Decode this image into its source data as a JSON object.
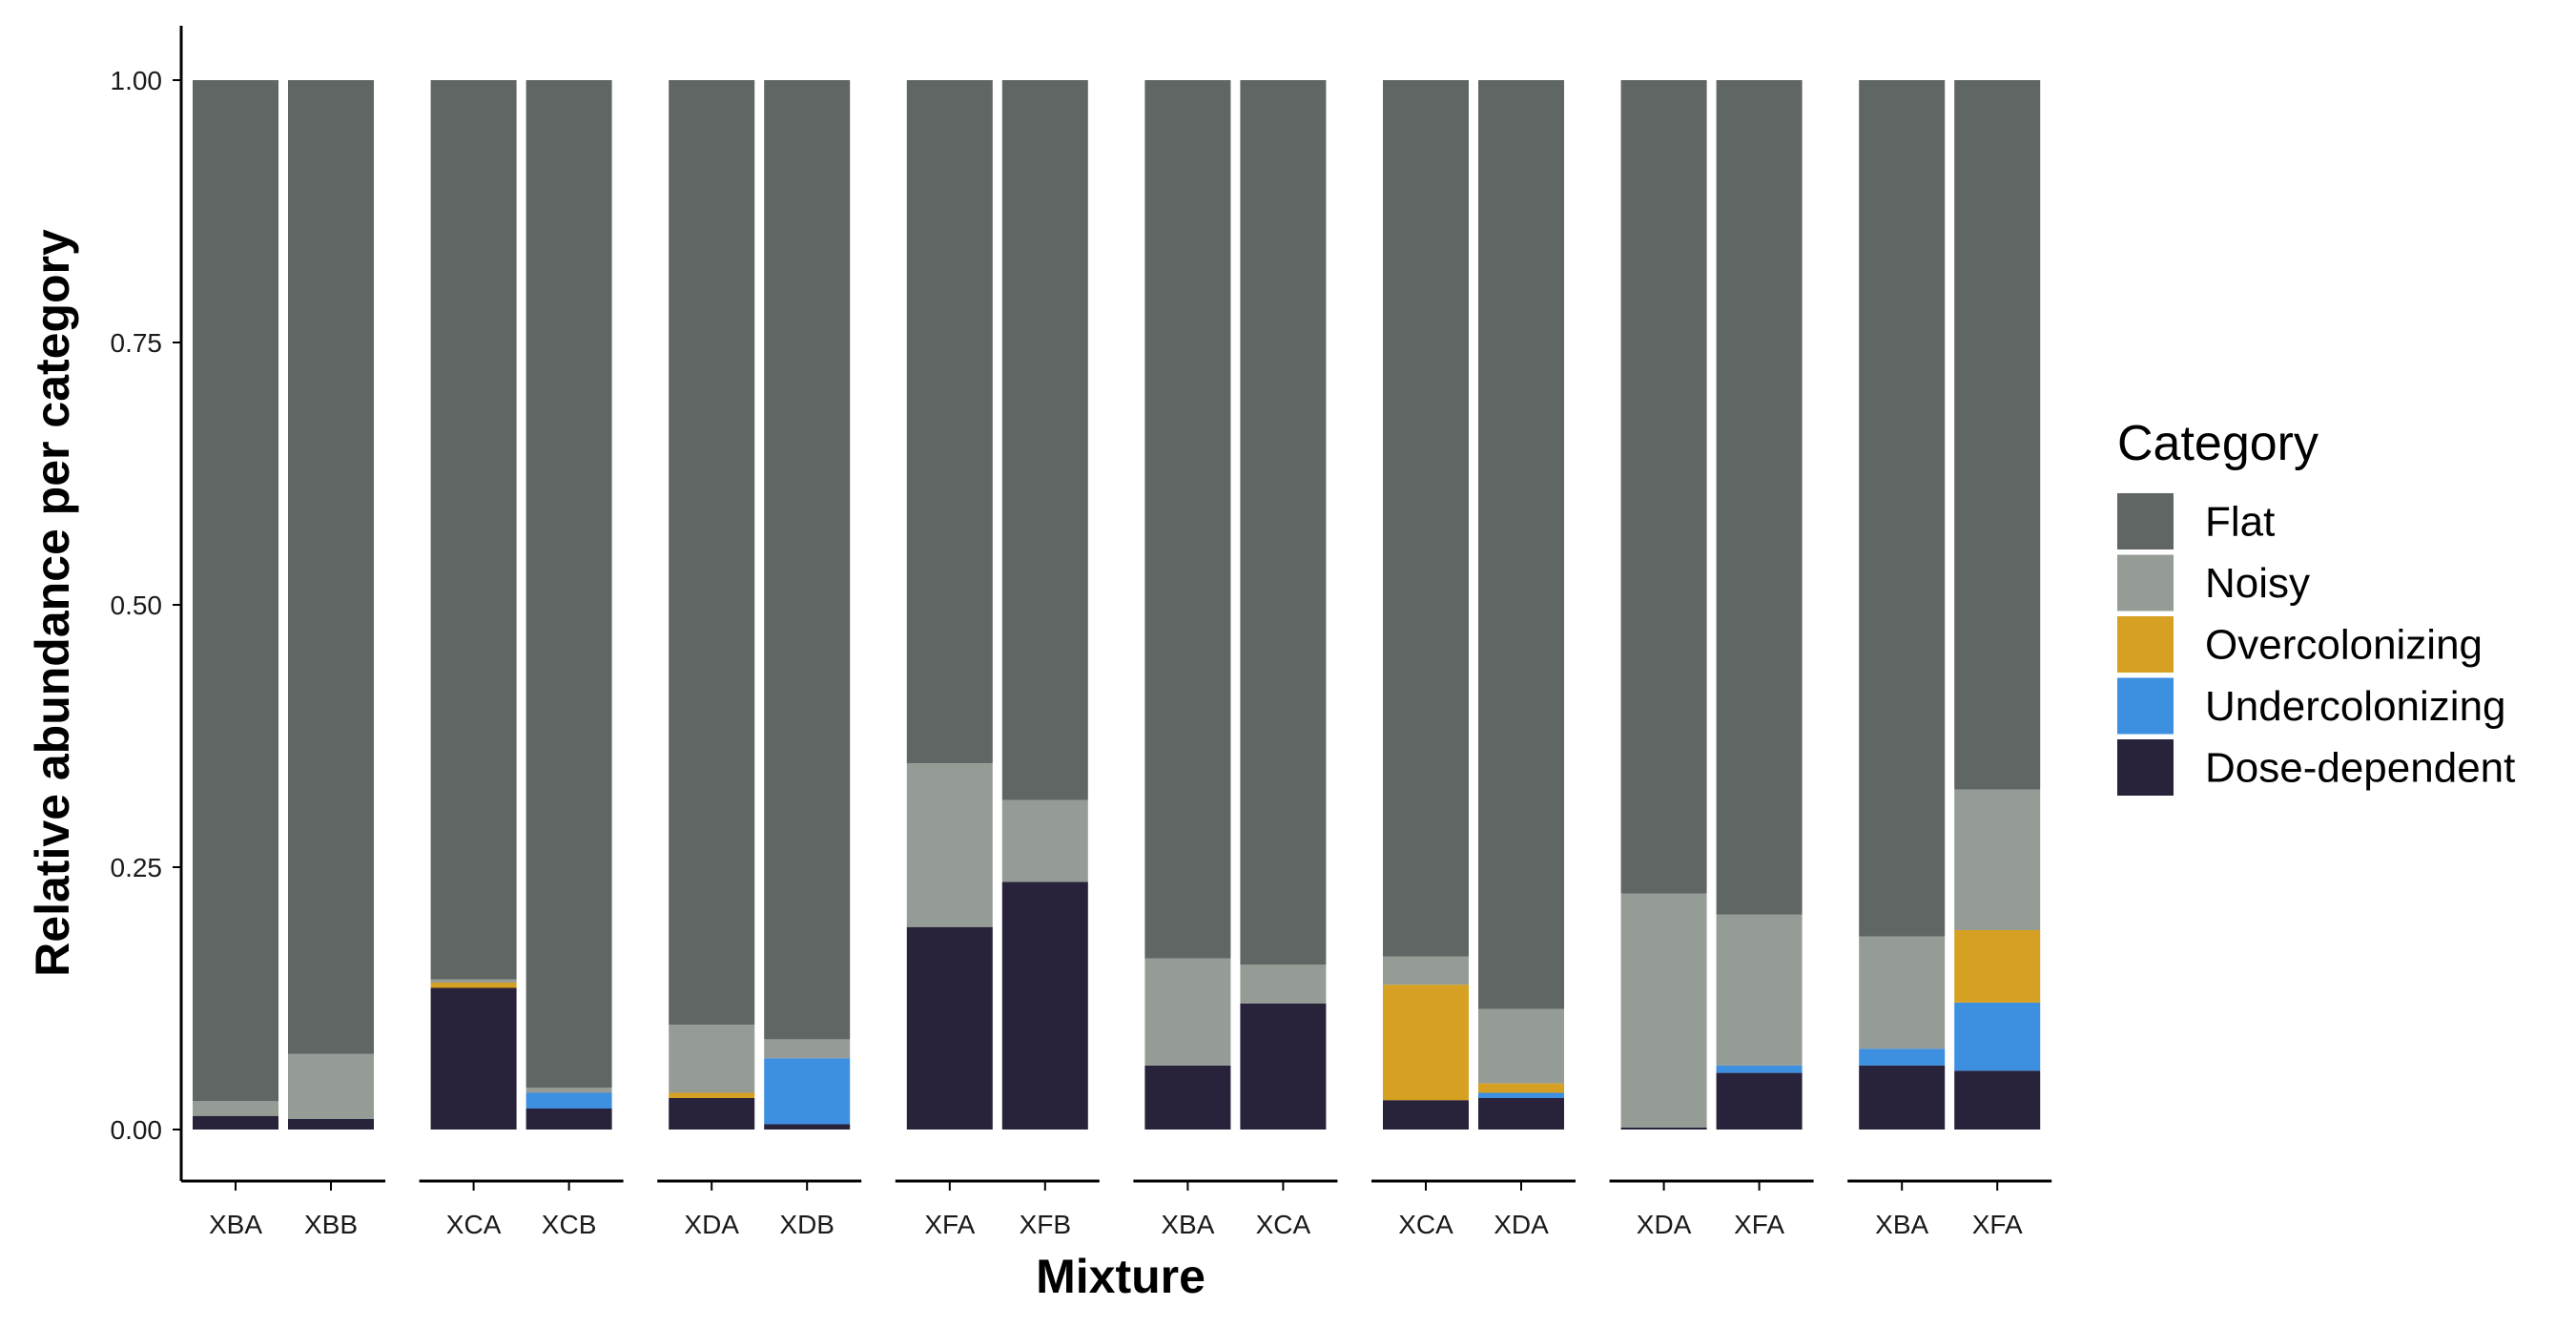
{
  "chart_data": {
    "type": "bar",
    "stacked": true,
    "xlabel": "Mixture",
    "ylabel": "Relative abundance per category",
    "ylim": [
      0,
      1
    ],
    "yticks": [
      "0.00",
      "0.25",
      "0.50",
      "0.75",
      "1.00"
    ],
    "grid": false,
    "legend": {
      "title": "Category",
      "placement": "right",
      "items": [
        {
          "name": "Flat",
          "color": "#606664"
        },
        {
          "name": "Noisy",
          "color": "#959c96"
        },
        {
          "name": "Overcolonizing",
          "color": "#d6a022"
        },
        {
          "name": "Undercolonizing",
          "color": "#3d8fe0"
        },
        {
          "name": "Dose-dependent",
          "color": "#29223b"
        }
      ]
    },
    "stack_order_bottom_to_top": [
      "Dose-dependent",
      "Undercolonizing",
      "Overcolonizing",
      "Noisy",
      "Flat"
    ],
    "groups": [
      {
        "bars": [
          {
            "label": "XBA",
            "values": {
              "Dose-dependent": 0.013,
              "Undercolonizing": 0.0,
              "Overcolonizing": 0.0,
              "Noisy": 0.014,
              "Flat": 0.973
            }
          },
          {
            "label": "XBB",
            "values": {
              "Dose-dependent": 0.01,
              "Undercolonizing": 0.0,
              "Overcolonizing": 0.0,
              "Noisy": 0.062,
              "Flat": 0.928
            }
          }
        ]
      },
      {
        "bars": [
          {
            "label": "XCA",
            "values": {
              "Dose-dependent": 0.135,
              "Undercolonizing": 0.0,
              "Overcolonizing": 0.005,
              "Noisy": 0.003,
              "Flat": 0.857
            }
          },
          {
            "label": "XCB",
            "values": {
              "Dose-dependent": 0.02,
              "Undercolonizing": 0.015,
              "Overcolonizing": 0.0,
              "Noisy": 0.005,
              "Flat": 0.96
            }
          }
        ]
      },
      {
        "bars": [
          {
            "label": "XDA",
            "values": {
              "Dose-dependent": 0.03,
              "Undercolonizing": 0.0,
              "Overcolonizing": 0.005,
              "Noisy": 0.065,
              "Flat": 0.9
            }
          },
          {
            "label": "XDB",
            "values": {
              "Dose-dependent": 0.005,
              "Undercolonizing": 0.063,
              "Overcolonizing": 0.0,
              "Noisy": 0.018,
              "Flat": 0.914
            }
          }
        ]
      },
      {
        "bars": [
          {
            "label": "XFA",
            "values": {
              "Dose-dependent": 0.193,
              "Undercolonizing": 0.0,
              "Overcolonizing": 0.0,
              "Noisy": 0.156,
              "Flat": 0.651
            }
          },
          {
            "label": "XFB",
            "values": {
              "Dose-dependent": 0.236,
              "Undercolonizing": 0.0,
              "Overcolonizing": 0.0,
              "Noisy": 0.078,
              "Flat": 0.686
            }
          }
        ]
      },
      {
        "bars": [
          {
            "label": "XBA",
            "values": {
              "Dose-dependent": 0.061,
              "Undercolonizing": 0.0,
              "Overcolonizing": 0.0,
              "Noisy": 0.102,
              "Flat": 0.837
            }
          },
          {
            "label": "XCA",
            "values": {
              "Dose-dependent": 0.12,
              "Undercolonizing": 0.0,
              "Overcolonizing": 0.0,
              "Noisy": 0.037,
              "Flat": 0.843
            }
          }
        ]
      },
      {
        "bars": [
          {
            "label": "XCA",
            "values": {
              "Dose-dependent": 0.028,
              "Undercolonizing": 0.0,
              "Overcolonizing": 0.11,
              "Noisy": 0.027,
              "Flat": 0.835
            }
          },
          {
            "label": "XDA",
            "values": {
              "Dose-dependent": 0.03,
              "Undercolonizing": 0.005,
              "Overcolonizing": 0.009,
              "Noisy": 0.071,
              "Flat": 0.885
            }
          }
        ]
      },
      {
        "bars": [
          {
            "label": "XDA",
            "values": {
              "Dose-dependent": 0.002,
              "Undercolonizing": 0.0,
              "Overcolonizing": 0.0,
              "Noisy": 0.223,
              "Flat": 0.775
            }
          },
          {
            "label": "XFA",
            "values": {
              "Dose-dependent": 0.054,
              "Undercolonizing": 0.007,
              "Overcolonizing": 0.0,
              "Noisy": 0.144,
              "Flat": 0.795
            }
          }
        ]
      },
      {
        "bars": [
          {
            "label": "XBA",
            "values": {
              "Dose-dependent": 0.061,
              "Undercolonizing": 0.016,
              "Overcolonizing": 0.0,
              "Noisy": 0.107,
              "Flat": 0.816
            }
          },
          {
            "label": "XFA",
            "values": {
              "Dose-dependent": 0.056,
              "Undercolonizing": 0.065,
              "Overcolonizing": 0.069,
              "Noisy": 0.134,
              "Flat": 0.676
            }
          }
        ]
      }
    ]
  }
}
